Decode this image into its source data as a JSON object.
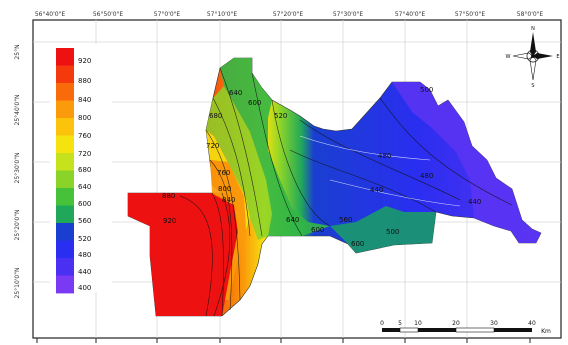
{
  "map": {
    "top_axis_labels": [
      "56°40'0\"E",
      "56°50'0\"E",
      "57°0'0\"E",
      "57°10'0\"E",
      "57°20'0\"E",
      "57°30'0\"E",
      "57°40'0\"E",
      "57°50'0\"E",
      "58°0'0\"E"
    ],
    "left_axis_labels": [
      "25°N",
      "25°40'0\"N",
      "25°30'0\"N",
      "25°20'0\"N",
      "25°10'0\"N"
    ],
    "legend": {
      "values": [
        "920",
        "880",
        "840",
        "800",
        "760",
        "720",
        "680",
        "640",
        "600",
        "560",
        "520",
        "480",
        "440",
        "400"
      ],
      "colors": [
        "#ee1111",
        "#f43a0c",
        "#f86a0a",
        "#fb9a0a",
        "#fcc30c",
        "#f6e20f",
        "#c6e21c",
        "#8ad42a",
        "#45c23a",
        "#20a85a",
        "#1a3fd0",
        "#2a2ef0",
        "#4a30f2",
        "#7a3af4"
      ]
    },
    "contour_labels": [
      {
        "text": "640"
      },
      {
        "text": "680"
      },
      {
        "text": "600"
      },
      {
        "text": "720"
      },
      {
        "text": "760"
      },
      {
        "text": "800"
      },
      {
        "text": "840"
      },
      {
        "text": "880"
      },
      {
        "text": "920"
      },
      {
        "text": "640"
      },
      {
        "text": "600"
      },
      {
        "text": "560"
      },
      {
        "text": "600"
      },
      {
        "text": "500"
      },
      {
        "text": "480"
      },
      {
        "text": "440"
      },
      {
        "text": "440"
      },
      {
        "text": "480"
      },
      {
        "text": "520"
      },
      {
        "text": "500"
      }
    ],
    "compass": {
      "n": "N",
      "s": "S",
      "e": "E",
      "w": "W"
    },
    "scale_bar": {
      "ticks": [
        "0",
        "5",
        "10",
        "20",
        "30",
        "40"
      ],
      "unit": "Km"
    }
  }
}
